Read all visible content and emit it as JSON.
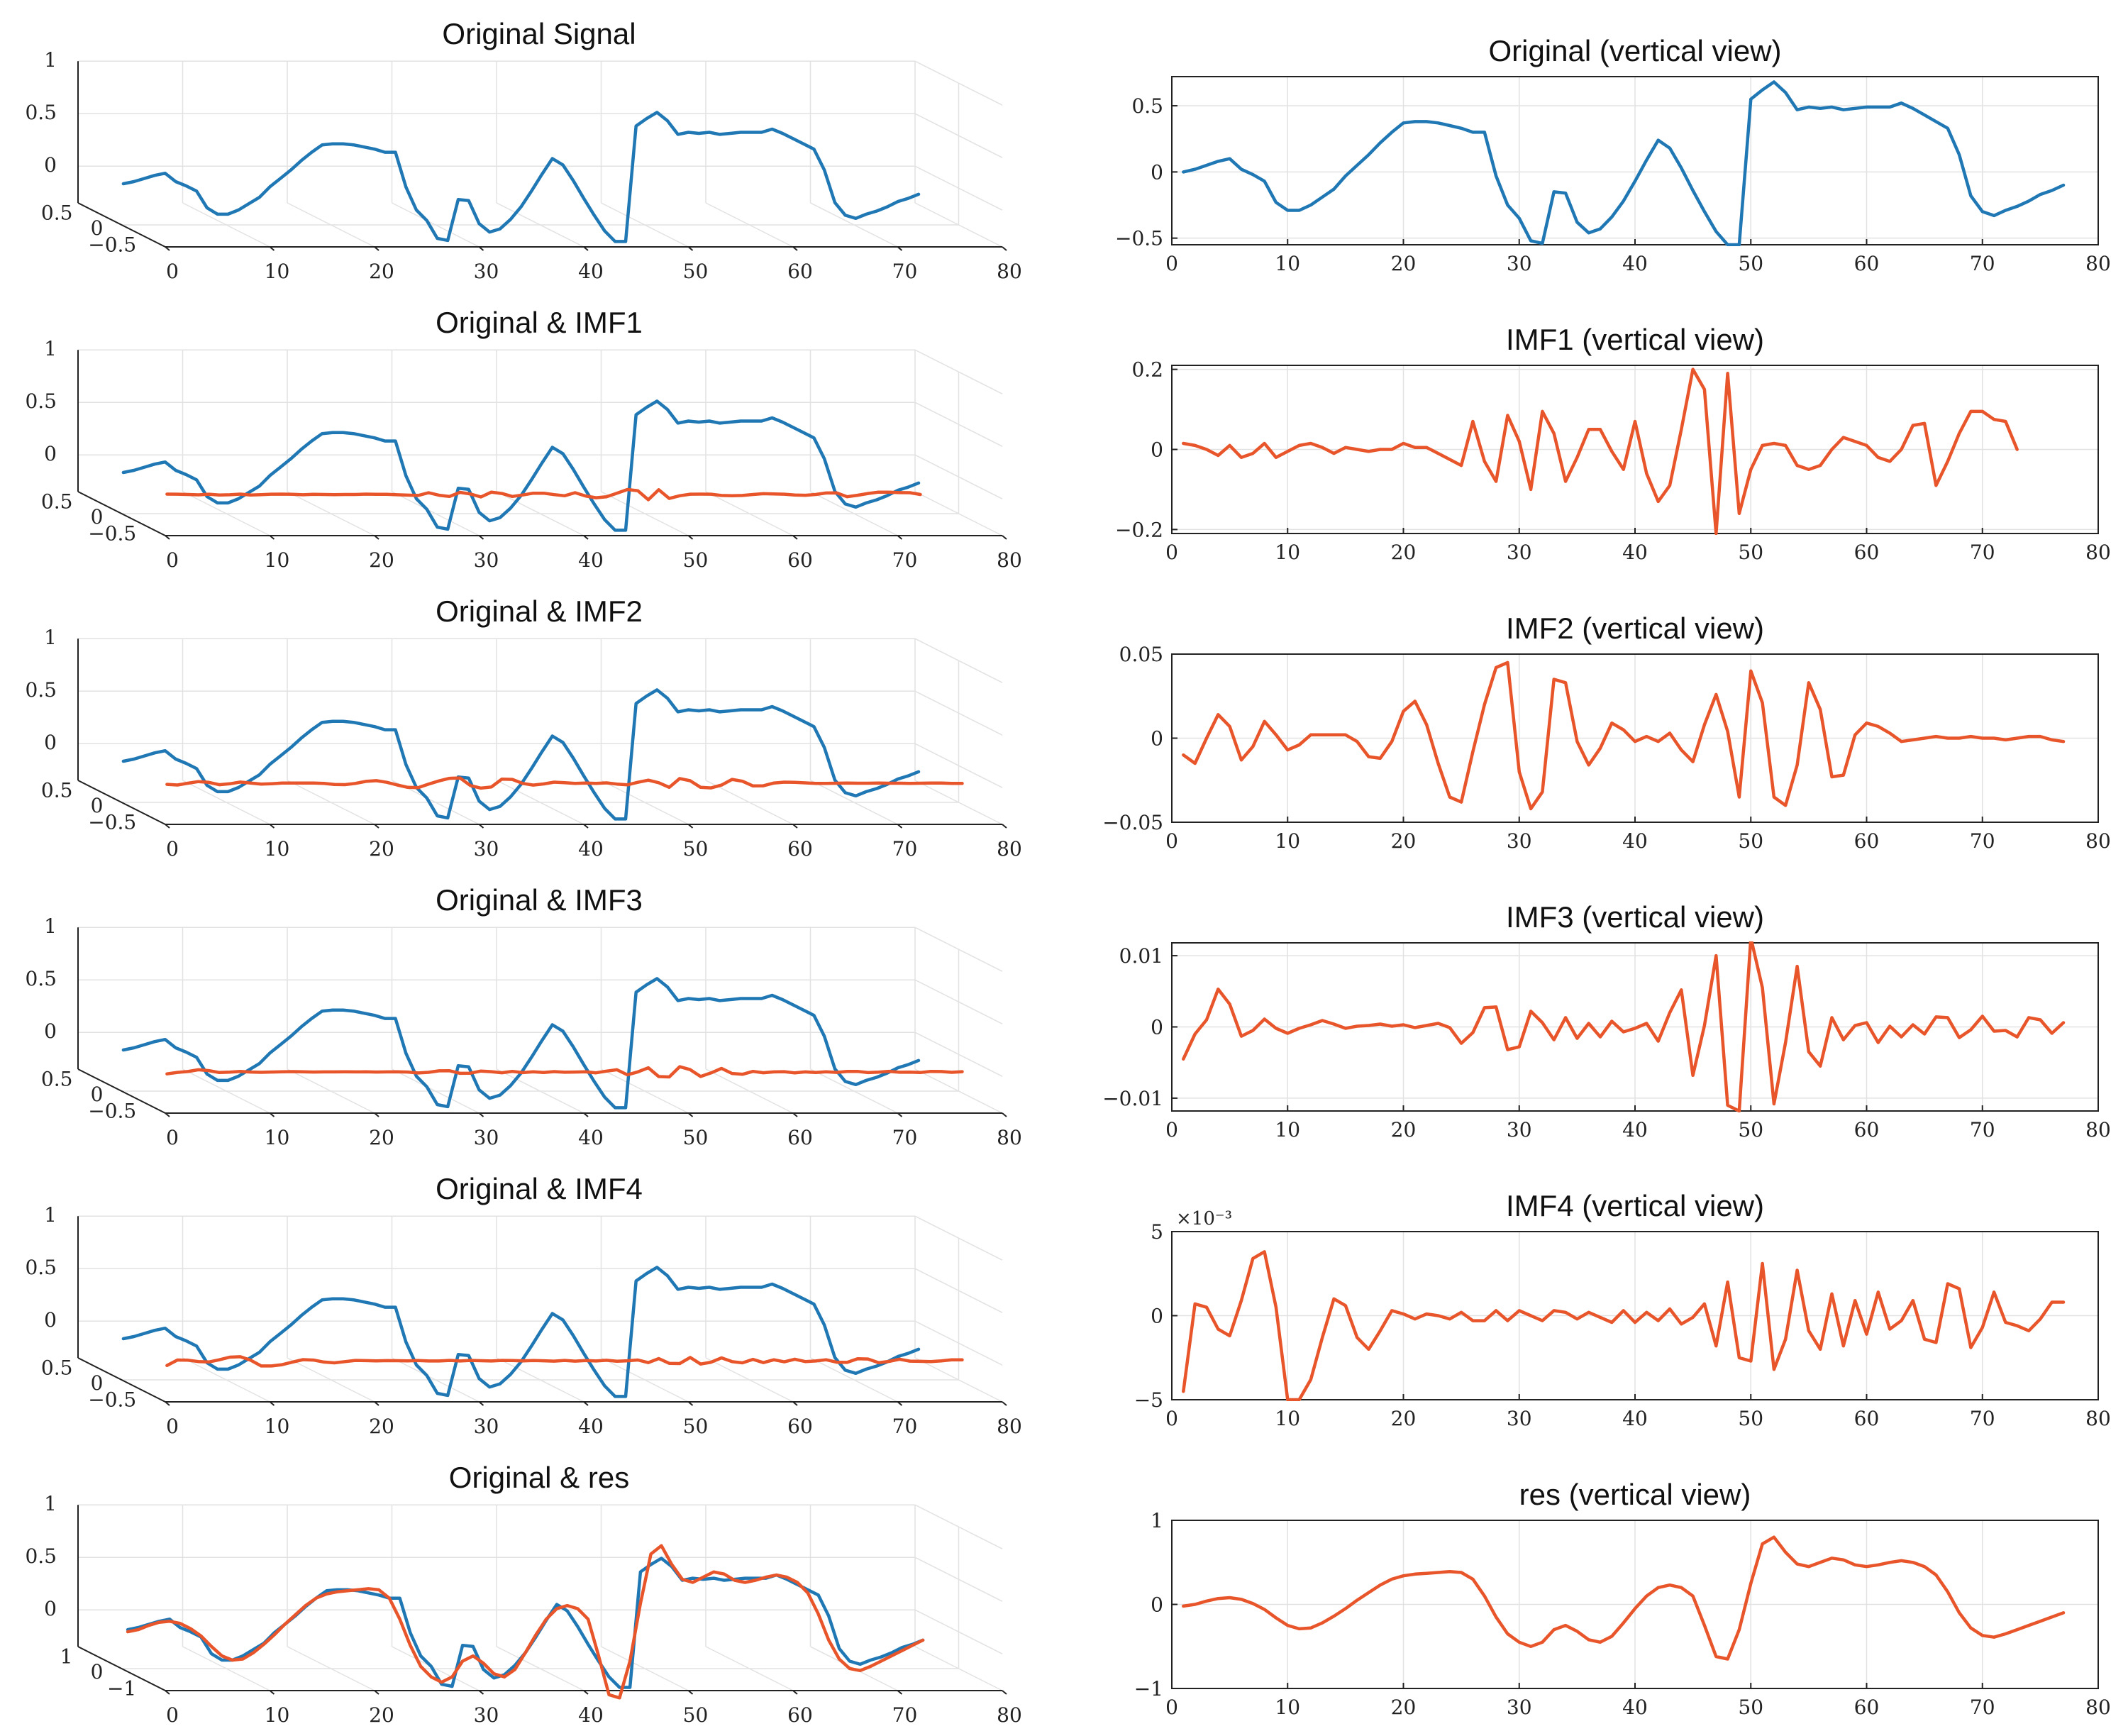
{
  "colors": {
    "original": "#1f77b4",
    "component": "#e8552a"
  },
  "chart_data": [
    {
      "type": "line3d",
      "title": "Original Signal",
      "series": [
        "orig"
      ],
      "xticks": [
        "0",
        "10",
        "20",
        "30",
        "40",
        "50",
        "60",
        "70",
        "80"
      ],
      "zticks": [
        "1",
        "0.5",
        "0"
      ],
      "yticks": [
        "0.5",
        "0",
        "−0.5"
      ]
    },
    {
      "type": "line",
      "title": "Original (vertical view)",
      "series": "orig",
      "ylim": [
        -0.55,
        0.72
      ],
      "yticks": [
        {
          "v": 0.5,
          "t": "0.5"
        },
        {
          "v": 0,
          "t": "0"
        },
        {
          "v": -0.5,
          "t": "−0.5"
        }
      ],
      "exp": "",
      "xticks": [
        "0",
        "10",
        "20",
        "30",
        "40",
        "50",
        "60",
        "70",
        "80"
      ]
    },
    {
      "type": "line3d",
      "title": "Original & IMF1",
      "series": [
        "orig",
        "imf1"
      ],
      "xticks": [
        "0",
        "10",
        "20",
        "30",
        "40",
        "50",
        "60",
        "70",
        "80"
      ],
      "zticks": [
        "1",
        "0.5",
        "0"
      ],
      "yticks": [
        "0.5",
        "0",
        "−0.5"
      ]
    },
    {
      "type": "line",
      "title": "IMF1 (vertical view)",
      "series": "imf1",
      "ylim": [
        -0.21,
        0.21
      ],
      "yticks": [
        {
          "v": 0.2,
          "t": "0.2"
        },
        {
          "v": 0,
          "t": "0"
        },
        {
          "v": -0.2,
          "t": "−0.2"
        }
      ],
      "exp": "",
      "xticks": [
        "0",
        "10",
        "20",
        "30",
        "40",
        "50",
        "60",
        "70",
        "80"
      ]
    },
    {
      "type": "line3d",
      "title": "Original & IMF2",
      "series": [
        "orig",
        "imf2"
      ],
      "xticks": [
        "0",
        "10",
        "20",
        "30",
        "40",
        "50",
        "60",
        "70",
        "80"
      ],
      "zticks": [
        "1",
        "0.5",
        "0"
      ],
      "yticks": [
        "0.5",
        "0",
        "−0.5"
      ]
    },
    {
      "type": "line",
      "title": "IMF2 (vertical view)",
      "series": "imf2",
      "ylim": [
        -0.05,
        0.05
      ],
      "yticks": [
        {
          "v": 0.05,
          "t": "0.05"
        },
        {
          "v": 0,
          "t": "0"
        },
        {
          "v": -0.05,
          "t": "−0.05"
        }
      ],
      "exp": "",
      "xticks": [
        "0",
        "10",
        "20",
        "30",
        "40",
        "50",
        "60",
        "70",
        "80"
      ]
    },
    {
      "type": "line3d",
      "title": "Original & IMF3",
      "series": [
        "orig",
        "imf3"
      ],
      "xticks": [
        "0",
        "10",
        "20",
        "30",
        "40",
        "50",
        "60",
        "70",
        "80"
      ],
      "zticks": [
        "1",
        "0.5",
        "0"
      ],
      "yticks": [
        "0.5",
        "0",
        "−0.5"
      ]
    },
    {
      "type": "line",
      "title": "IMF3 (vertical view)",
      "series": "imf3",
      "ylim": [
        -0.0118,
        0.0118
      ],
      "yticks": [
        {
          "v": 0.01,
          "t": "0.01"
        },
        {
          "v": 0,
          "t": "0"
        },
        {
          "v": -0.01,
          "t": "−0.01"
        }
      ],
      "exp": "",
      "xticks": [
        "0",
        "10",
        "20",
        "30",
        "40",
        "50",
        "60",
        "70",
        "80"
      ]
    },
    {
      "type": "line3d",
      "title": "Original & IMF4",
      "series": [
        "orig",
        "imf4"
      ],
      "xticks": [
        "0",
        "10",
        "20",
        "30",
        "40",
        "50",
        "60",
        "70",
        "80"
      ],
      "zticks": [
        "1",
        "0.5",
        "0"
      ],
      "yticks": [
        "0.5",
        "0",
        "−0.5"
      ]
    },
    {
      "type": "line",
      "title": "IMF4 (vertical view)",
      "series": "imf4",
      "ylim": [
        -5,
        5
      ],
      "yticks": [
        {
          "v": 5,
          "t": "5"
        },
        {
          "v": 0,
          "t": "0"
        },
        {
          "v": -5,
          "t": "−5"
        }
      ],
      "exp": "×10⁻³",
      "xticks": [
        "0",
        "10",
        "20",
        "30",
        "40",
        "50",
        "60",
        "70",
        "80"
      ]
    },
    {
      "type": "line3d",
      "title": "Original & res",
      "series": [
        "orig",
        "res"
      ],
      "xticks": [
        "0",
        "10",
        "20",
        "30",
        "40",
        "50",
        "60",
        "70",
        "80"
      ],
      "zticks": [
        "1",
        "0.5",
        "0"
      ],
      "yticks": [
        "1",
        "0",
        "−1"
      ]
    },
    {
      "type": "line",
      "title": "res (vertical view)",
      "series": "res",
      "ylim": [
        -1,
        1
      ],
      "yticks": [
        {
          "v": 1,
          "t": "1"
        },
        {
          "v": 0,
          "t": "0"
        },
        {
          "v": -1,
          "t": "−1"
        }
      ],
      "exp": "",
      "xticks": [
        "0",
        "10",
        "20",
        "30",
        "40",
        "50",
        "60",
        "70",
        "80"
      ]
    }
  ],
  "series_data": {
    "x_start": 1,
    "orig": [
      0,
      0.02,
      0.05,
      0.08,
      0.1,
      0.02,
      -0.02,
      -0.07,
      -0.23,
      -0.29,
      -0.29,
      -0.25,
      -0.19,
      -0.13,
      -0.03,
      0.05,
      0.13,
      0.22,
      0.3,
      0.37,
      0.38,
      0.38,
      0.37,
      0.35,
      0.33,
      0.3,
      0.3,
      -0.03,
      -0.25,
      -0.35,
      -0.52,
      -0.54,
      -0.15,
      -0.16,
      -0.38,
      -0.46,
      -0.43,
      -0.34,
      -0.22,
      -0.07,
      0.09,
      0.24,
      0.18,
      0.03,
      -0.14,
      -0.3,
      -0.45,
      -0.55,
      -0.55,
      0.55,
      0.62,
      0.68,
      0.6,
      0.47,
      0.49,
      0.48,
      0.49,
      0.47,
      0.48,
      0.49,
      0.49,
      0.49,
      0.52,
      0.48,
      0.43,
      0.38,
      0.33,
      0.13,
      -0.18,
      -0.3,
      -0.33,
      -0.29,
      -0.26,
      -0.22,
      -0.17,
      -0.14,
      -0.1
    ],
    "imf1": [
      0.015,
      0.01,
      0,
      -0.015,
      0.01,
      -0.02,
      -0.01,
      0.015,
      -0.02,
      -0.005,
      0.01,
      0.015,
      0.005,
      -0.01,
      0.005,
      0,
      -0.005,
      0,
      0,
      0.015,
      0.005,
      0.005,
      -0.01,
      -0.025,
      -0.04,
      0.07,
      -0.03,
      -0.08,
      0.085,
      0.02,
      -0.1,
      0.095,
      0.04,
      -0.08,
      -0.02,
      0.05,
      0.05,
      -0.005,
      -0.05,
      0.07,
      -0.06,
      -0.13,
      -0.09,
      0.05,
      0.2,
      0.15,
      -0.21,
      0.19,
      -0.16,
      -0.05,
      0.01,
      0.015,
      0.01,
      -0.04,
      -0.05,
      -0.04,
      0,
      0.03,
      0.02,
      0.01,
      -0.02,
      -0.03,
      0,
      0.06,
      0.065,
      -0.09,
      -0.03,
      0.04,
      0.095,
      0.095,
      0.075,
      0.07,
      0
    ],
    "imf2": [
      -0.01,
      -0.015,
      0,
      0.014,
      0.007,
      -0.013,
      -0.005,
      0.01,
      0.002,
      -0.007,
      -0.004,
      0.002,
      0.002,
      0.002,
      0.002,
      -0.002,
      -0.011,
      -0.012,
      -0.002,
      0.016,
      0.022,
      0.008,
      -0.015,
      -0.035,
      -0.038,
      -0.008,
      0.02,
      0.042,
      0.045,
      -0.02,
      -0.042,
      -0.032,
      0.035,
      0.033,
      -0.002,
      -0.016,
      -0.006,
      0.009,
      0.005,
      -0.002,
      0.001,
      -0.002,
      0.003,
      -0.007,
      -0.014,
      0.008,
      0.026,
      0.004,
      -0.035,
      0.04,
      0.021,
      -0.035,
      -0.04,
      -0.016,
      0.033,
      0.017,
      -0.023,
      -0.022,
      0.002,
      0.009,
      0.007,
      0.003,
      -0.002,
      -0.001,
      0,
      0.001,
      0,
      0,
      0.001,
      0,
      0,
      -0.001,
      0,
      0.001,
      0.001,
      -0.001,
      -0.002
    ],
    "imf3": [
      -0.0045,
      -0.001,
      0.001,
      0.0053,
      0.0032,
      -0.0013,
      -0.0005,
      0.0011,
      -0.0002,
      -0.0009,
      -0.0002,
      0.0003,
      0.0009,
      0.0004,
      -0.0002,
      0.0001,
      0.0002,
      0.0004,
      0.0001,
      0.0003,
      -0.0001,
      0.0002,
      0.0005,
      -0.0001,
      -0.0023,
      -0.0008,
      0.0027,
      0.0028,
      -0.0032,
      -0.0028,
      0.0022,
      0.0006,
      -0.0018,
      0.0013,
      -0.0016,
      0.0005,
      -0.0014,
      0.0008,
      -0.0007,
      -0.0002,
      0.0005,
      -0.002,
      0.002,
      0.0052,
      -0.0068,
      0.0002,
      0.01,
      -0.011,
      -0.0118,
      0.0125,
      0.0055,
      -0.0108,
      -0.0022,
      0.0085,
      -0.0035,
      -0.0055,
      0.0013,
      -0.0018,
      0.0002,
      0.0006,
      -0.0022,
      0.0001,
      -0.0014,
      0.0003,
      -0.001,
      0.0014,
      0.0013,
      -0.0015,
      -0.0004,
      0.0015,
      -0.0006,
      -0.0005,
      -0.0014,
      0.0013,
      0.001,
      -0.0009,
      0.0006
    ],
    "imf4": [
      -4.5,
      0.7,
      0.5,
      -0.8,
      -1.2,
      0.9,
      3.4,
      3.8,
      0.5,
      -5,
      -5,
      -3.8,
      -1.3,
      1,
      0.6,
      -1.3,
      -2,
      -0.9,
      0.3,
      0.1,
      -0.2,
      0.1,
      0,
      -0.2,
      0.2,
      -0.3,
      -0.3,
      0.3,
      -0.3,
      0.3,
      0,
      -0.3,
      0.3,
      0.2,
      -0.2,
      0.2,
      -0.1,
      -0.4,
      0.3,
      -0.4,
      0.2,
      -0.3,
      0.4,
      -0.5,
      -0.1,
      0.7,
      -1.8,
      2,
      -2.5,
      -2.7,
      3.1,
      -3.2,
      -1.4,
      2.7,
      -0.9,
      -2,
      1.3,
      -1.8,
      0.9,
      -1.1,
      1.4,
      -0.8,
      -0.3,
      0.9,
      -1.4,
      -1.6,
      1.9,
      1.6,
      -1.9,
      -0.7,
      1.4,
      -0.4,
      -0.6,
      -0.9,
      -0.2,
      0.8,
      0.8
    ],
    "res": [
      -0.02,
      0,
      0.04,
      0.07,
      0.08,
      0.06,
      0.01,
      -0.06,
      -0.16,
      -0.25,
      -0.29,
      -0.28,
      -0.22,
      -0.14,
      -0.05,
      0.05,
      0.14,
      0.23,
      0.3,
      0.34,
      0.36,
      0.37,
      0.38,
      0.39,
      0.38,
      0.3,
      0.1,
      -0.15,
      -0.35,
      -0.45,
      -0.5,
      -0.45,
      -0.3,
      -0.25,
      -0.32,
      -0.42,
      -0.45,
      -0.38,
      -0.22,
      -0.05,
      0.1,
      0.2,
      0.23,
      0.2,
      0.1,
      -0.25,
      -0.62,
      -0.65,
      -0.3,
      0.25,
      0.72,
      0.8,
      0.62,
      0.48,
      0.45,
      0.5,
      0.55,
      0.53,
      0.47,
      0.45,
      0.47,
      0.5,
      0.52,
      0.5,
      0.45,
      0.35,
      0.15,
      -0.1,
      -0.28,
      -0.37,
      -0.39,
      -0.35,
      -0.3,
      -0.25,
      -0.2,
      -0.15,
      -0.1
    ]
  }
}
